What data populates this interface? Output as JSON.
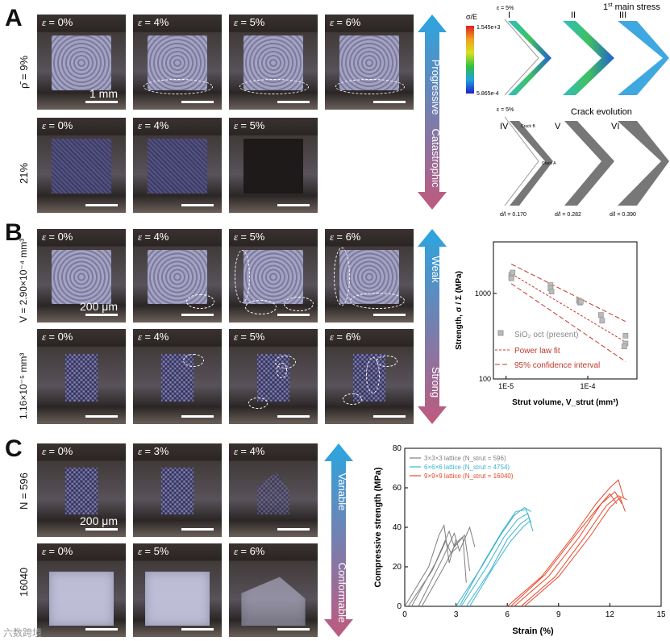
{
  "panels": {
    "a": "A",
    "b": "B",
    "c": "C"
  },
  "strain_symbol": "ε",
  "panel_a": {
    "row1_label_rho": "ρ̄",
    "row1_label_value": " = 9%",
    "row2_label": "21%",
    "row1": [
      "= 0%",
      "= 4%",
      "= 5%",
      "= 6%"
    ],
    "row2": [
      "= 0%",
      "= 4%",
      "= 5%"
    ],
    "scalebar": "1 mm",
    "arrow": {
      "top": "Progressive",
      "bottom": "Catastrophic",
      "top_color": "#2aa6e0",
      "bottom_color": "#c0597e"
    },
    "stress": {
      "title_prefix": "1",
      "title_sup": "st",
      "title_suffix": " main stress",
      "colorbar_label": "σ/E",
      "colorbar_max": "1.545e+3",
      "colorbar_min": "5.865e-4",
      "strain_note": "ε = 5%",
      "labels": [
        "I",
        "II",
        "III"
      ]
    },
    "crack": {
      "title": "Crack evolution",
      "strain_note": "ε = 5%",
      "labels": [
        "IV",
        "V",
        "VI"
      ],
      "crack_b": "Crack B",
      "crack_a": "Crack A",
      "ratios": [
        "d/l = 0.170",
        "d/l = 0.282",
        "d/l = 0.390"
      ]
    }
  },
  "panel_b": {
    "row1_label": "V = 2.90×10⁻⁴ mm³",
    "row2_label": "1.16×10⁻⁵ mm³",
    "row1": [
      "= 0%",
      "= 4%",
      "= 5%",
      "= 6%"
    ],
    "row2": [
      "= 0%",
      "= 4%",
      "= 5%",
      "= 6%"
    ],
    "scalebar": "200 μm",
    "arrow": {
      "top": "Weak",
      "bottom": "Strong",
      "top_color": "#2aa6e0",
      "bottom_color": "#c0597e"
    }
  },
  "panel_c": {
    "row1_label": "N = 596",
    "row2_label": "16040",
    "row1": [
      "= 0%",
      "= 3%",
      "= 4%"
    ],
    "row2": [
      "= 0%",
      "= 5%",
      "= 6%"
    ],
    "scalebar": "200 μm",
    "arrow": {
      "top": "Variable",
      "bottom": "Conformable",
      "top_color": "#2aa6e0",
      "bottom_color": "#c0597e"
    }
  },
  "chart_data": [
    {
      "type": "scatter",
      "xlabel": "Strut volume, V_strut (mm³)",
      "ylabel": "Strength, σ / Σ (MPa)",
      "x_scale": "log",
      "y_scale": "log",
      "xlim": [
        7e-06,
        0.0004
      ],
      "ylim": [
        100,
        4000
      ],
      "x_ticks": [
        "1E-5",
        "1E-4"
      ],
      "y_ticks": [
        "100",
        "1000"
      ],
      "legend": [
        "SiO₂ oct (present)",
        "Power law fit",
        "95% confidence interval"
      ],
      "legend_position": "bottom-left",
      "series": [
        {
          "name": "SiO₂ oct (present)",
          "color": "#999999",
          "x": [
            1.16e-05,
            1.16e-05,
            1.16e-05,
            1.2e-05,
            3.5e-05,
            3.5e-05,
            3.6e-05,
            7.8e-05,
            8e-05,
            8.2e-05,
            0.000145,
            0.00015,
            0.00029,
            0.00029,
            0.00028
          ],
          "y": [
            1550,
            1650,
            1500,
            1750,
            1250,
            1150,
            1050,
            820,
            780,
            800,
            560,
            480,
            320,
            260,
            240
          ]
        }
      ],
      "fit": {
        "color": "#c0392b",
        "x": [
          1.16e-05,
          0.00029
        ],
        "y": [
          1700,
          270
        ]
      },
      "ci_upper": {
        "color": "#c0392b",
        "x": [
          1.16e-05,
          0.00029
        ],
        "y": [
          2200,
          470
        ]
      },
      "ci_lower": {
        "color": "#c0392b",
        "x": [
          1.16e-05,
          0.00029
        ],
        "y": [
          1300,
          160
        ]
      }
    },
    {
      "type": "line",
      "xlabel": "Strain (%)",
      "ylabel": "Compressive strength (MPa)",
      "xlim": [
        0,
        15
      ],
      "ylim": [
        0,
        80
      ],
      "x_ticks": [
        0,
        3,
        6,
        9,
        12,
        15
      ],
      "y_ticks": [
        0,
        20,
        40,
        60,
        80
      ],
      "legend_position": "top-left",
      "series": [
        {
          "name": "3×3×3 lattice (N_strut = 596)",
          "color": "#7f7f7f",
          "curves": [
            [
              [
                0,
                0
              ],
              [
                1.4,
                20
              ],
              [
                2.0,
                36
              ],
              [
                2.3,
                41
              ],
              [
                2.6,
                22
              ],
              [
                3.0,
                34
              ]
            ],
            [
              [
                0.4,
                0
              ],
              [
                1.8,
                22
              ],
              [
                2.6,
                38
              ],
              [
                2.9,
                30
              ],
              [
                3.4,
                35
              ],
              [
                3.6,
                12
              ]
            ],
            [
              [
                0.8,
                0
              ],
              [
                2.2,
                24
              ],
              [
                2.9,
                37
              ],
              [
                3.2,
                28
              ],
              [
                3.8,
                40
              ],
              [
                4.1,
                30
              ]
            ],
            [
              [
                0.2,
                0
              ],
              [
                1.6,
                18
              ],
              [
                2.4,
                33
              ],
              [
                2.7,
                27
              ],
              [
                3.1,
                30
              ]
            ],
            [
              [
                1.0,
                0
              ],
              [
                2.3,
                20
              ],
              [
                3.0,
                32
              ],
              [
                3.5,
                36
              ],
              [
                3.8,
                18
              ]
            ]
          ]
        },
        {
          "name": "6×6×6 lattice (N_strut = 4754)",
          "color": "#3bb3cf",
          "curves": [
            [
              [
                3.0,
                0
              ],
              [
                4.5,
                20
              ],
              [
                5.6,
                36
              ],
              [
                6.4,
                46
              ],
              [
                7.0,
                50
              ],
              [
                7.4,
                48
              ]
            ],
            [
              [
                3.3,
                0
              ],
              [
                4.8,
                20
              ],
              [
                5.8,
                35
              ],
              [
                6.6,
                44
              ],
              [
                7.2,
                47
              ],
              [
                7.5,
                38
              ]
            ],
            [
              [
                3.6,
                0
              ],
              [
                5.0,
                18
              ],
              [
                6.0,
                34
              ],
              [
                6.8,
                42
              ],
              [
                7.3,
                45
              ]
            ],
            [
              [
                3.2,
                0
              ],
              [
                4.6,
                22
              ],
              [
                5.7,
                38
              ],
              [
                6.5,
                48
              ],
              [
                7.1,
                49
              ],
              [
                7.4,
                42
              ]
            ],
            [
              [
                3.8,
                0
              ],
              [
                5.2,
                20
              ],
              [
                6.2,
                33
              ],
              [
                6.9,
                40
              ],
              [
                7.3,
                43
              ]
            ]
          ]
        },
        {
          "name": "9×9×9 lattice (N_strut = 16040)",
          "color": "#e8482b",
          "curves": [
            [
              [
                6.0,
                0
              ],
              [
                8.0,
                15
              ],
              [
                9.8,
                35
              ],
              [
                11.2,
                52
              ],
              [
                12.0,
                60
              ],
              [
                12.5,
                64
              ],
              [
                12.8,
                55
              ]
            ],
            [
              [
                6.4,
                0
              ],
              [
                8.4,
                15
              ],
              [
                10.2,
                35
              ],
              [
                11.5,
                52
              ],
              [
                12.3,
                58
              ],
              [
                12.7,
                52
              ]
            ],
            [
              [
                6.8,
                0
              ],
              [
                8.8,
                15
              ],
              [
                10.6,
                36
              ],
              [
                11.8,
                51
              ],
              [
                12.5,
                56
              ],
              [
                13.0,
                54
              ]
            ],
            [
              [
                6.2,
                0
              ],
              [
                8.2,
                16
              ],
              [
                10.0,
                36
              ],
              [
                11.3,
                50
              ],
              [
                12.0,
                57
              ],
              [
                12.4,
                52
              ]
            ],
            [
              [
                7.0,
                0
              ],
              [
                9.0,
                15
              ],
              [
                10.8,
                35
              ],
              [
                12.0,
                50
              ],
              [
                12.6,
                55
              ],
              [
                12.9,
                48
              ]
            ]
          ]
        }
      ]
    }
  ],
  "watermark": "六数跨境"
}
